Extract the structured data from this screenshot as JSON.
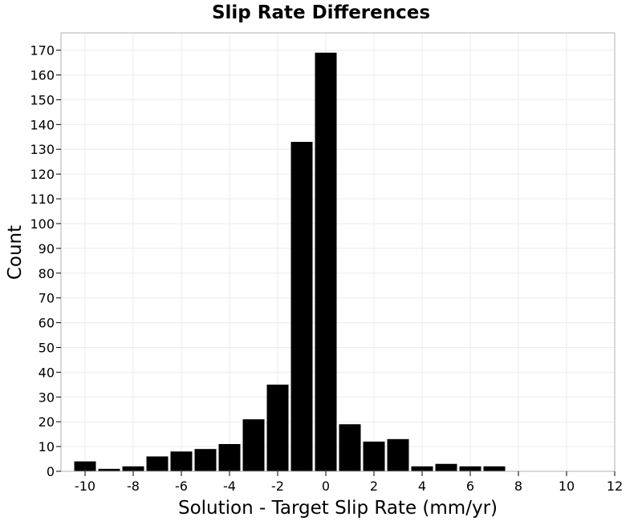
{
  "chart_data": {
    "type": "bar",
    "title": "Slip Rate Differences",
    "xlabel": "Solution - Target Slip Rate (mm/yr)",
    "ylabel": "Count",
    "xlim": [
      -11,
      12
    ],
    "ylim": [
      0,
      177
    ],
    "x_ticks": [
      -10,
      -8,
      -6,
      -4,
      -2,
      0,
      2,
      4,
      6,
      8,
      10,
      12
    ],
    "y_ticks": [
      0,
      10,
      20,
      30,
      40,
      50,
      60,
      70,
      80,
      90,
      100,
      110,
      120,
      130,
      140,
      150,
      160,
      170
    ],
    "bin_width": 1,
    "bin_centers": [
      -10,
      -9,
      -8,
      -7,
      -6,
      -5,
      -4,
      -3,
      -2,
      -1,
      0,
      1,
      2,
      3,
      4,
      5,
      6,
      7
    ],
    "values": [
      4,
      1,
      2,
      6,
      8,
      9,
      11,
      21,
      35,
      133,
      169,
      19,
      12,
      13,
      2,
      3,
      2,
      2
    ],
    "bar_color": "#000000",
    "grid": true
  }
}
